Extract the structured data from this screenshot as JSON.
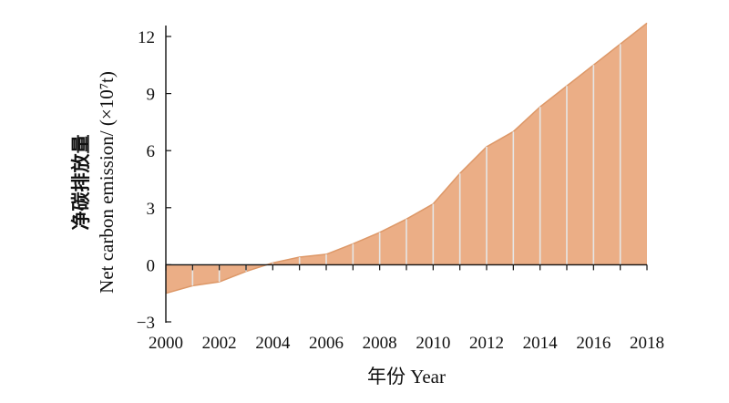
{
  "chart_data": {
    "type": "area",
    "x": [
      2000,
      2001,
      2002,
      2003,
      2004,
      2005,
      2006,
      2007,
      2008,
      2009,
      2010,
      2011,
      2012,
      2013,
      2014,
      2015,
      2016,
      2017,
      2018
    ],
    "values": [
      -1.5,
      -1.1,
      -0.9,
      -0.35,
      0.1,
      0.4,
      0.55,
      1.1,
      1.7,
      2.4,
      3.2,
      4.8,
      6.2,
      7.0,
      8.3,
      9.4,
      10.5,
      11.6,
      12.7
    ],
    "xlabel": "年份 Year",
    "ylabel_cn": "净碳排放量",
    "ylabel_en": "Net carbon emission/ (×10⁷t)",
    "x_ticks": [
      "2000",
      "2002",
      "2004",
      "2006",
      "2008",
      "2010",
      "2012",
      "2014",
      "2016",
      "2018"
    ],
    "y_ticks": [
      {
        "value": -3,
        "label": "−3"
      },
      {
        "value": 0,
        "label": "0"
      },
      {
        "value": 3,
        "label": "3"
      },
      {
        "value": 6,
        "label": "6"
      },
      {
        "value": 9,
        "label": "9"
      },
      {
        "value": 12,
        "label": "12"
      }
    ],
    "xlim": [
      2000,
      2018
    ],
    "ylim": [
      -3,
      13
    ],
    "grid": false,
    "fill_color": "#ebae86",
    "line_color": "#dd9868",
    "divider_color": "#e6e6e6"
  }
}
